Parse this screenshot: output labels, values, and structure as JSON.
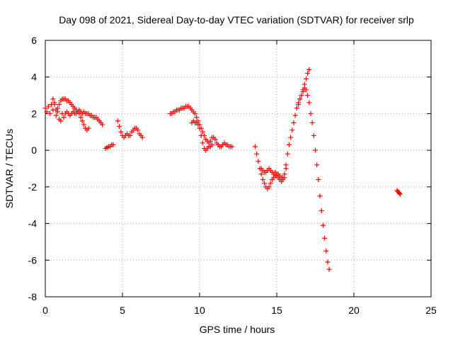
{
  "chart_data": {
    "type": "scatter",
    "title": "Day 098 of 2021, Sidereal Day-to-day VTEC variation (SDTVAR) for receiver srlp",
    "xlabel": "GPS time / hours",
    "ylabel": "SDTVAR / TECUs",
    "xlim": [
      0,
      25
    ],
    "ylim": [
      -8,
      6
    ],
    "xticks": [
      "0",
      "5",
      "10",
      "15",
      "20",
      "25"
    ],
    "yticks": [
      "-8",
      "-6",
      "-4",
      "-2",
      "0",
      "2",
      "4",
      "6"
    ],
    "grid": true,
    "marker": "plus",
    "color": "#ff0000",
    "series": [
      {
        "points": [
          [
            0.0,
            2.3
          ],
          [
            0.1,
            2.1
          ],
          [
            0.2,
            2.4
          ],
          [
            0.3,
            2.0
          ],
          [
            0.4,
            2.5
          ],
          [
            0.5,
            2.2
          ],
          [
            0.6,
            2.6
          ],
          [
            0.7,
            1.9
          ],
          [
            0.8,
            2.1
          ],
          [
            0.9,
            1.7
          ],
          [
            1.0,
            1.6
          ],
          [
            1.1,
            2.0
          ],
          [
            1.2,
            1.8
          ],
          [
            1.3,
            2.0
          ],
          [
            1.4,
            2.1
          ],
          [
            1.5,
            2.0
          ],
          [
            1.6,
            1.9
          ],
          [
            1.7,
            2.0
          ],
          [
            1.8,
            2.1
          ],
          [
            1.9,
            2.0
          ],
          [
            2.0,
            2.0
          ],
          [
            2.1,
            2.1
          ],
          [
            2.2,
            2.2
          ],
          [
            2.3,
            2.1
          ],
          [
            2.4,
            2.0
          ],
          [
            2.5,
            2.1
          ],
          [
            2.6,
            2.0
          ],
          [
            2.7,
            2.0
          ],
          [
            2.8,
            2.0
          ],
          [
            2.9,
            1.9
          ],
          [
            3.0,
            1.9
          ],
          [
            3.1,
            1.8
          ],
          [
            3.2,
            1.8
          ],
          [
            3.3,
            1.8
          ],
          [
            3.4,
            1.7
          ],
          [
            3.5,
            1.6
          ],
          [
            3.6,
            1.5
          ],
          [
            3.7,
            1.4
          ]
        ]
      },
      {
        "points": [
          [
            0.5,
            2.8
          ],
          [
            0.6,
            2.5
          ],
          [
            0.7,
            2.2
          ],
          [
            0.8,
            2.3
          ],
          [
            0.9,
            2.5
          ],
          [
            1.0,
            2.7
          ],
          [
            1.1,
            2.8
          ],
          [
            1.2,
            2.8
          ],
          [
            1.3,
            2.8
          ],
          [
            1.4,
            2.7
          ],
          [
            1.5,
            2.7
          ],
          [
            1.6,
            2.6
          ],
          [
            1.7,
            2.5
          ],
          [
            1.8,
            2.4
          ],
          [
            1.9,
            2.3
          ],
          [
            2.0,
            2.2
          ],
          [
            2.1,
            2.1
          ],
          [
            2.2,
            2.0
          ],
          [
            2.3,
            1.8
          ],
          [
            2.4,
            1.6
          ],
          [
            2.5,
            1.4
          ],
          [
            2.6,
            1.2
          ],
          [
            2.7,
            1.1
          ],
          [
            2.8,
            1.2
          ]
        ]
      },
      {
        "points": [
          [
            3.9,
            0.1
          ],
          [
            4.0,
            0.15
          ],
          [
            4.1,
            0.2
          ],
          [
            4.2,
            0.2
          ],
          [
            4.3,
            0.3
          ],
          [
            4.4,
            0.3
          ],
          [
            4.7,
            1.6
          ],
          [
            4.8,
            1.3
          ],
          [
            4.9,
            1.0
          ],
          [
            5.0,
            0.8
          ],
          [
            5.1,
            0.7
          ],
          [
            5.2,
            0.8
          ],
          [
            5.3,
            0.9
          ],
          [
            5.4,
            0.8
          ],
          [
            5.5,
            0.8
          ],
          [
            5.6,
            1.0
          ],
          [
            5.7,
            1.1
          ],
          [
            5.8,
            1.2
          ],
          [
            5.9,
            1.2
          ],
          [
            6.0,
            1.1
          ],
          [
            6.1,
            0.9
          ],
          [
            6.2,
            0.8
          ],
          [
            6.3,
            0.7
          ]
        ]
      },
      {
        "points": [
          [
            8.1,
            2.0
          ],
          [
            8.2,
            2.0
          ],
          [
            8.3,
            2.1
          ],
          [
            8.4,
            2.1
          ],
          [
            8.5,
            2.2
          ],
          [
            8.6,
            2.2
          ],
          [
            8.7,
            2.2
          ],
          [
            8.8,
            2.3
          ],
          [
            8.9,
            2.3
          ],
          [
            9.0,
            2.3
          ],
          [
            9.1,
            2.4
          ],
          [
            9.2,
            2.4
          ],
          [
            9.3,
            2.4
          ],
          [
            9.4,
            2.3
          ],
          [
            9.5,
            2.2
          ],
          [
            9.6,
            2.1
          ],
          [
            9.7,
            2.0
          ],
          [
            9.8,
            1.8
          ],
          [
            9.9,
            1.6
          ],
          [
            10.0,
            1.4
          ],
          [
            10.1,
            1.2
          ],
          [
            10.2,
            1.0
          ],
          [
            10.3,
            0.8
          ],
          [
            10.4,
            0.6
          ],
          [
            10.5,
            0.5
          ],
          [
            10.6,
            0.4
          ],
          [
            10.7,
            0.5
          ],
          [
            10.8,
            0.7
          ],
          [
            10.9,
            0.7
          ],
          [
            11.0,
            0.6
          ],
          [
            11.1,
            0.4
          ],
          [
            11.2,
            0.3
          ],
          [
            11.3,
            0.2
          ],
          [
            11.4,
            0.2
          ],
          [
            11.5,
            0.3
          ],
          [
            11.6,
            0.4
          ],
          [
            11.7,
            0.3
          ],
          [
            11.8,
            0.3
          ],
          [
            11.9,
            0.2
          ],
          [
            12.0,
            0.2
          ],
          [
            12.1,
            0.2
          ],
          [
            9.5,
            1.5
          ],
          [
            9.6,
            1.6
          ],
          [
            9.7,
            1.5
          ],
          [
            9.8,
            1.5
          ],
          [
            9.9,
            1.4
          ],
          [
            10.0,
            1.2
          ],
          [
            10.1,
            0.8
          ],
          [
            10.2,
            0.4
          ],
          [
            10.3,
            0.1
          ],
          [
            10.4,
            0.0
          ],
          [
            10.5,
            0.1
          ],
          [
            10.6,
            0.2
          ],
          [
            10.7,
            0.2
          ],
          [
            10.8,
            0.3
          ]
        ]
      },
      {
        "points": [
          [
            13.6,
            0.2
          ],
          [
            13.7,
            -0.2
          ],
          [
            13.8,
            -0.6
          ],
          [
            13.9,
            -1.0
          ],
          [
            14.0,
            -1.3
          ],
          [
            14.1,
            -1.6
          ],
          [
            14.2,
            -1.8
          ],
          [
            14.3,
            -2.0
          ],
          [
            14.4,
            -2.1
          ],
          [
            14.5,
            -2.0
          ],
          [
            14.6,
            -1.8
          ],
          [
            14.7,
            -1.6
          ],
          [
            14.8,
            -1.5
          ],
          [
            14.9,
            -1.4
          ],
          [
            15.0,
            -1.4
          ],
          [
            15.1,
            -1.3
          ],
          [
            15.2,
            -1.4
          ],
          [
            15.3,
            -1.5
          ],
          [
            15.4,
            -1.5
          ],
          [
            15.5,
            -1.3
          ],
          [
            15.6,
            -1.0
          ],
          [
            14.0,
            -1.0
          ],
          [
            14.1,
            -1.1
          ],
          [
            14.2,
            -1.2
          ],
          [
            14.3,
            -1.2
          ],
          [
            14.4,
            -1.1
          ],
          [
            14.5,
            -1.0
          ],
          [
            14.6,
            -1.1
          ],
          [
            14.7,
            -1.2
          ],
          [
            14.8,
            -1.3
          ],
          [
            14.9,
            -1.2
          ],
          [
            15.0,
            -1.3
          ],
          [
            15.1,
            -1.5
          ],
          [
            15.2,
            -1.6
          ],
          [
            15.3,
            -1.7
          ],
          [
            15.4,
            -1.6
          ],
          [
            15.5,
            -1.5
          ],
          [
            15.6,
            -0.8
          ],
          [
            15.7,
            -0.2
          ],
          [
            15.8,
            0.3
          ],
          [
            15.9,
            0.7
          ],
          [
            16.0,
            1.1
          ],
          [
            16.1,
            1.5
          ],
          [
            16.2,
            1.9
          ],
          [
            16.3,
            2.3
          ],
          [
            16.4,
            2.6
          ],
          [
            16.5,
            2.8
          ],
          [
            16.6,
            3.0
          ],
          [
            16.7,
            3.3
          ],
          [
            16.8,
            3.6
          ],
          [
            16.9,
            3.9
          ],
          [
            17.0,
            4.2
          ],
          [
            17.1,
            4.4
          ],
          [
            16.4,
            2.5
          ],
          [
            16.5,
            2.8
          ],
          [
            16.6,
            3.0
          ],
          [
            16.7,
            3.2
          ],
          [
            16.8,
            3.4
          ],
          [
            16.9,
            3.3
          ],
          [
            17.0,
            3.0
          ],
          [
            17.1,
            2.6
          ],
          [
            17.2,
            2.0
          ],
          [
            17.3,
            1.5
          ],
          [
            17.4,
            0.8
          ],
          [
            17.5,
            0.0
          ],
          [
            17.6,
            -0.8
          ],
          [
            17.7,
            -1.6
          ],
          [
            17.8,
            -2.5
          ],
          [
            17.9,
            -3.3
          ],
          [
            18.0,
            -4.1
          ],
          [
            18.1,
            -4.8
          ],
          [
            18.2,
            -5.5
          ],
          [
            18.3,
            -6.1
          ],
          [
            18.4,
            -6.5
          ]
        ]
      },
      {
        "points": [
          [
            22.8,
            -2.2
          ],
          [
            22.85,
            -2.25
          ],
          [
            22.9,
            -2.3
          ],
          [
            22.95,
            -2.35
          ],
          [
            23.0,
            -2.4
          ]
        ]
      }
    ]
  }
}
